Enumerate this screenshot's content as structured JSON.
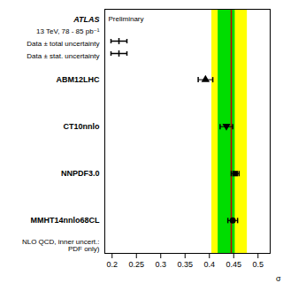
{
  "chart_data": {
    "type": "errorbar",
    "x_label": "σ",
    "xlim": [
      0.185,
      0.525
    ],
    "xticks": [
      0.2,
      0.25,
      0.3,
      0.35,
      0.4,
      0.45,
      0.5
    ],
    "ylim": [
      0.3,
      5.5
    ],
    "tick_labels": "x",
    "points": [
      {
        "label": "ABM12LHC",
        "x": 0.392,
        "xerr": 0.015,
        "y": 4,
        "marker": "triangle-up"
      },
      {
        "label": "CT10nnlo",
        "x": 0.435,
        "xerr": 0.013,
        "y": 3,
        "marker": "triangle-down"
      },
      {
        "label": "NNPDF3.0",
        "x": 0.453,
        "xerr": 0.008,
        "y": 2,
        "marker": "square"
      },
      {
        "label": "MMHT14nnlo68CL",
        "x": 0.448,
        "xerr": 0.01,
        "y": 1,
        "marker": "circle"
      }
    ],
    "bands": [
      {
        "x": [
          0.405,
          0.478
        ],
        "color": "#ffff00"
      },
      {
        "x": [
          0.418,
          0.453
        ],
        "color": "#00dd00"
      }
    ],
    "reference_line": {
      "x": 0.445,
      "color": "#cc0000"
    },
    "experiment": "ATLAS",
    "status": "Preliminary",
    "energy_text": "13 TeV, 78 - 85 pb⁻¹",
    "legend_entries": [
      "Data ± total uncertainty",
      "Data ± stat. uncertainty"
    ],
    "note": "NLO QCD, inner uncert.: PDF only)"
  }
}
